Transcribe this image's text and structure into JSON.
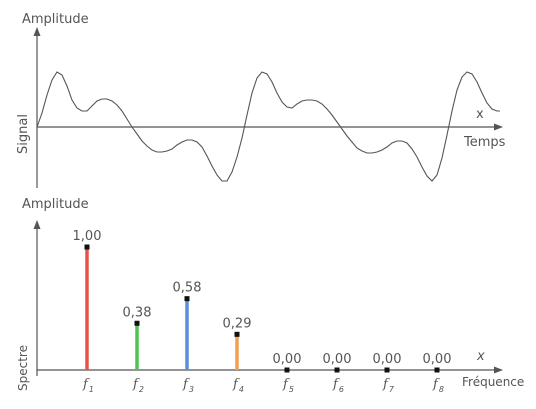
{
  "signal_panel": {
    "y_axis_title": "Amplitude",
    "y_side_label": "Signal",
    "x_axis_title": "Temps",
    "x_symbol": "x"
  },
  "spectrum_panel": {
    "y_axis_title": "Amplitude",
    "y_side_label": "Spectre",
    "x_axis_title": "Fréquence",
    "x_symbol": "x"
  },
  "colors": {
    "axis": "#555555",
    "curve": "#555555",
    "bars": [
      "#e8504a",
      "#4fc24f",
      "#5b8fdc",
      "#f0a050",
      "#555555",
      "#555555",
      "#555555",
      "#555555"
    ]
  },
  "chart_data": {
    "type": "bar",
    "categories": [
      "f1",
      "f2",
      "f3",
      "f4",
      "f5",
      "f6",
      "f7",
      "f8"
    ],
    "category_labels": [
      {
        "base": "f",
        "sub": "1"
      },
      {
        "base": "f",
        "sub": "2"
      },
      {
        "base": "f",
        "sub": "3"
      },
      {
        "base": "f",
        "sub": "4"
      },
      {
        "base": "f",
        "sub": "5"
      },
      {
        "base": "f",
        "sub": "6"
      },
      {
        "base": "f",
        "sub": "7"
      },
      {
        "base": "f",
        "sub": "8"
      }
    ],
    "values": [
      1.0,
      0.38,
      0.58,
      0.29,
      0.0,
      0.0,
      0.0,
      0.0
    ],
    "value_labels": [
      "1,00",
      "0,38",
      "0,58",
      "0,29",
      "0,00",
      "0,00",
      "0,00",
      "0,00"
    ],
    "ylim": [
      0,
      1
    ],
    "grid": false
  }
}
